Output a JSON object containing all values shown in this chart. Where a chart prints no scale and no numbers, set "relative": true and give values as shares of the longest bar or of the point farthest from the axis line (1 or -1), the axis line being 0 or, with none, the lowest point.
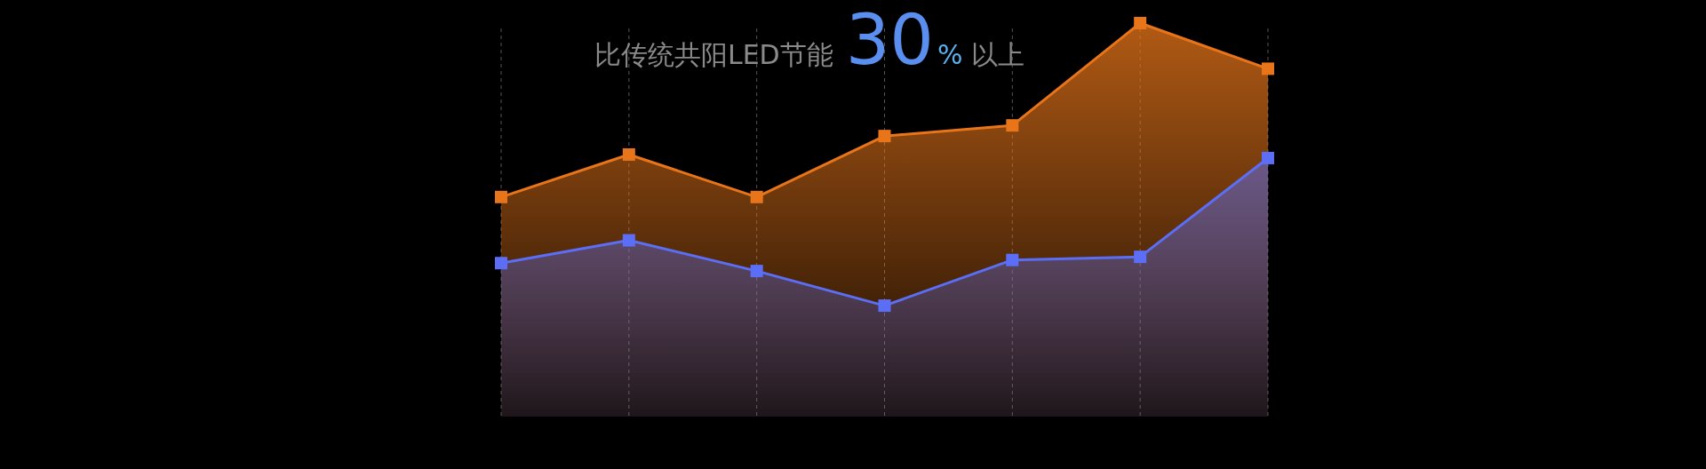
{
  "chart_data": {
    "type": "area",
    "title": "比传统共阳LED节能 30% 以上",
    "relative": true,
    "categories": [
      null,
      null,
      null,
      null,
      null,
      null,
      null
    ],
    "grid": "x",
    "marker": "square",
    "series": [
      {
        "color": "#e8751a",
        "values": [
          0.558,
          0.666,
          0.558,
          0.713,
          0.74,
          1,
          0.884
        ]
      },
      {
        "color": "#5b6ef5",
        "values": [
          0.39,
          0.448,
          0.37,
          0.282,
          0.398,
          0.406,
          0.657
        ]
      }
    ]
  }
}
